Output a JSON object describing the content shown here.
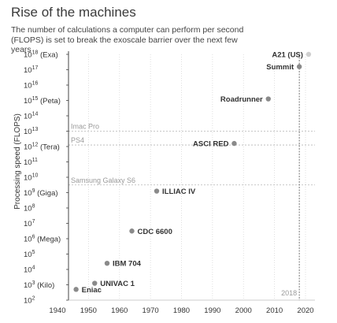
{
  "title": "Rise of the machines",
  "subtitle": "The number of calculations a computer can perform per second (FLOPS) is set to break the exoscale barrier over the next few years",
  "chart_data": {
    "type": "scatter",
    "title": "Rise of the machines",
    "ylabel": "Processing speed (FLOPS)",
    "y_scale": "log10",
    "xlim": [
      1940,
      2020
    ],
    "ylim_exponent": [
      2,
      18
    ],
    "x_ticks": [
      "1940",
      "1950",
      "1960",
      "1970",
      "1980",
      "1990",
      "2000",
      "2010",
      "2020"
    ],
    "y_ticks": [
      {
        "exp": "18",
        "suffix": " (Exa)"
      },
      {
        "exp": "17",
        "suffix": ""
      },
      {
        "exp": "16",
        "suffix": ""
      },
      {
        "exp": "15",
        "suffix": " (Peta)"
      },
      {
        "exp": "14",
        "suffix": ""
      },
      {
        "exp": "13",
        "suffix": ""
      },
      {
        "exp": "12",
        "suffix": " (Tera)"
      },
      {
        "exp": "11",
        "suffix": ""
      },
      {
        "exp": "10",
        "suffix": ""
      },
      {
        "exp": "9",
        "suffix": " (Giga)"
      },
      {
        "exp": "8",
        "suffix": ""
      },
      {
        "exp": "7",
        "suffix": ""
      },
      {
        "exp": "6",
        "suffix": " (Mega)"
      },
      {
        "exp": "5",
        "suffix": ""
      },
      {
        "exp": "4",
        "suffix": ""
      },
      {
        "exp": "3",
        "suffix": " (Kilo)"
      },
      {
        "exp": "2",
        "suffix": ""
      }
    ],
    "points": [
      {
        "name": "Eniac",
        "year": 1946,
        "log_flops": 2.7,
        "label_side": "right",
        "color": "#8a8a8a"
      },
      {
        "name": "UNIVAC 1",
        "year": 1952,
        "log_flops": 3.1,
        "label_side": "right",
        "color": "#8a8a8a"
      },
      {
        "name": "IBM 704",
        "year": 1956,
        "log_flops": 4.4,
        "label_side": "right",
        "color": "#8a8a8a"
      },
      {
        "name": "CDC 6600",
        "year": 1964,
        "log_flops": 6.5,
        "label_side": "right",
        "color": "#8a8a8a"
      },
      {
        "name": "ILLIAC IV",
        "year": 1972,
        "log_flops": 9.1,
        "label_side": "right",
        "color": "#8a8a8a"
      },
      {
        "name": "ASCI RED",
        "year": 1997,
        "log_flops": 12.2,
        "label_side": "left",
        "color": "#8a8a8a"
      },
      {
        "name": "Roadrunner",
        "year": 2008,
        "log_flops": 15.1,
        "label_side": "left",
        "color": "#8a8a8a"
      },
      {
        "name": "Summit",
        "year": 2018,
        "log_flops": 17.2,
        "label_side": "left",
        "color": "#8a8a8a"
      },
      {
        "name": "A21 (US)",
        "year": 2021,
        "log_flops": 18.0,
        "label_side": "left",
        "color": "#cfcfcf"
      }
    ],
    "reference_lines": [
      {
        "label": "Imac Pro",
        "log_flops": 13.0
      },
      {
        "label": "PS4",
        "log_flops": 12.1
      },
      {
        "label": "Samsung Galaxy S6",
        "log_flops": 9.5
      }
    ],
    "marker": {
      "year": 2018,
      "label": "2018"
    }
  }
}
